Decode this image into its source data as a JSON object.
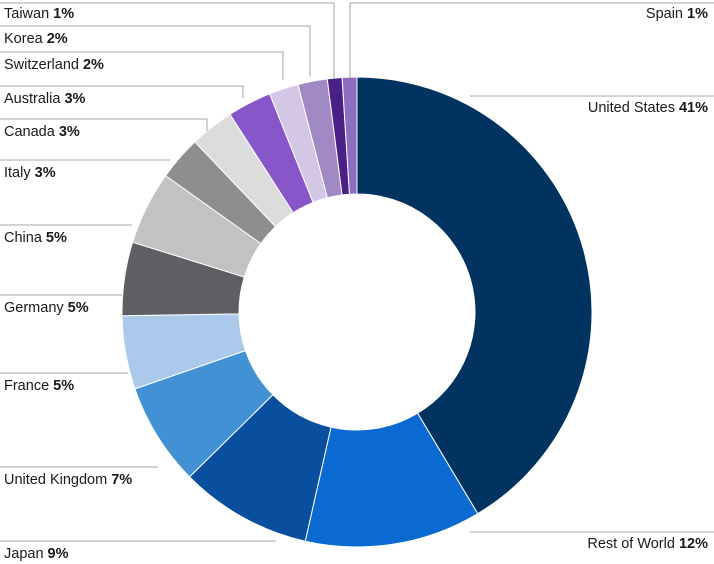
{
  "chart_data": {
    "type": "pie",
    "donut": true,
    "title": "",
    "slices": [
      {
        "label": "United States",
        "display": "41%",
        "value": 41,
        "color": "#00335f"
      },
      {
        "label": "Rest of World",
        "display": "12%",
        "value": 12,
        "color": "#0a6ad1"
      },
      {
        "label": "Japan",
        "display": "9%",
        "value": 9,
        "color": "#0a4e9e"
      },
      {
        "label": "United Kingdom",
        "display": "7%",
        "value": 7,
        "color": "#4191d4"
      },
      {
        "label": "France",
        "display": "5%",
        "value": 5,
        "color": "#abc9eb"
      },
      {
        "label": "Germany",
        "display": "5%",
        "value": 5,
        "color": "#5f5f63"
      },
      {
        "label": "China",
        "display": "5%",
        "value": 5,
        "color": "#c2c2c4"
      },
      {
        "label": "Italy",
        "display": "3%",
        "value": 3,
        "color": "#8e8e91"
      },
      {
        "label": "Canada",
        "display": "3%",
        "value": 3,
        "color": "#dcdcdd"
      },
      {
        "label": "Australia",
        "display": "3%",
        "value": 3,
        "color": "#8756c8"
      },
      {
        "label": "Switzerland",
        "display": "2%",
        "value": 2,
        "color": "#d4c7e6"
      },
      {
        "label": "Korea",
        "display": "2%",
        "value": 2,
        "color": "#a189c4"
      },
      {
        "label": "Taiwan",
        "display": "1%",
        "value": 1,
        "color": "#4a1f86"
      },
      {
        "label": "Spain",
        "display": "1%",
        "value": 1,
        "color": "#8e6cc0"
      }
    ]
  }
}
